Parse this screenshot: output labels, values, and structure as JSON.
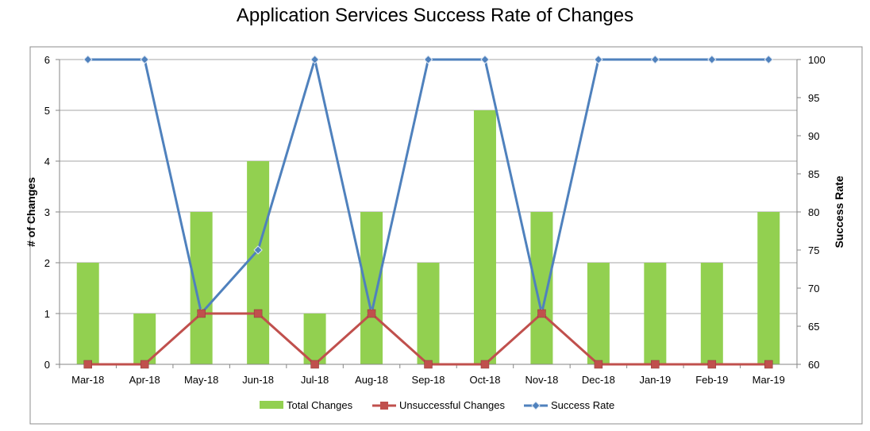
{
  "chart_data": {
    "type": "bar",
    "title": "Application Services Success Rate of Changes",
    "categories": [
      "Mar-18",
      "Apr-18",
      "May-18",
      "Jun-18",
      "Jul-18",
      "Aug-18",
      "Sep-18",
      "Oct-18",
      "Nov-18",
      "Dec-18",
      "Jan-19",
      "Feb-19",
      "Mar-19"
    ],
    "ylabel": "# of Changes",
    "y2label": "Success Rate",
    "ylim": [
      0,
      6
    ],
    "y2lim": [
      60,
      100
    ],
    "yticks": [
      0,
      1,
      2,
      3,
      4,
      5,
      6
    ],
    "y2ticks": [
      60,
      65,
      70,
      75,
      80,
      85,
      90,
      95,
      100
    ],
    "grid": true,
    "legend_position": "bottom",
    "series": [
      {
        "name": "Total Changes",
        "type": "bar",
        "axis": "left",
        "color": "#92D050",
        "values": [
          2,
          1,
          3,
          4,
          1,
          3,
          2,
          5,
          3,
          2,
          2,
          2,
          3
        ]
      },
      {
        "name": "Unsuccessful Changes",
        "type": "line",
        "axis": "left",
        "color": "#C0504D",
        "marker": "square",
        "values": [
          0,
          0,
          1,
          1,
          0,
          1,
          0,
          0,
          1,
          0,
          0,
          0,
          0
        ]
      },
      {
        "name": "Success Rate",
        "type": "line",
        "axis": "right",
        "color": "#4F81BD",
        "marker": "diamond",
        "values": [
          100,
          100,
          66.7,
          75,
          100,
          66.7,
          100,
          100,
          66.7,
          100,
          100,
          100,
          100
        ]
      }
    ]
  }
}
